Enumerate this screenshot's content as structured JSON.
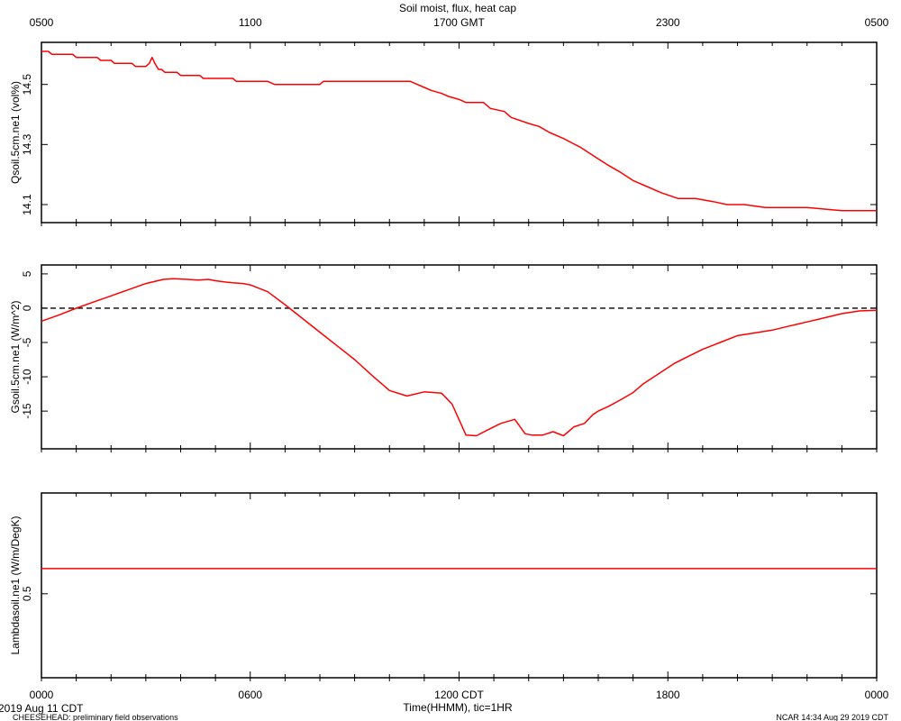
{
  "figure": {
    "title": "Soil moist, flux, heat cap",
    "date_label": "2019 Aug 11 CDT",
    "footer_left": "CHEESEHEAD: preliminary field observations",
    "footer_right": "NCAR 14:34 Aug 29 2019 CDT",
    "bottom_xlabel": "Time(HHMM), tic=1HR",
    "top_ticks": [
      "0500",
      "1100",
      "1700 GMT",
      "2300",
      "0500"
    ],
    "bottom_ticks": [
      "0000",
      "0600",
      "1200 CDT",
      "1800",
      "0000"
    ]
  },
  "colors": {
    "series": "#ff0000",
    "axis": "#000000",
    "zero_line": "#000000"
  },
  "chart_data": [
    {
      "type": "line",
      "ylabel": "Qsoil.5cm.ne1 (vol%)",
      "ylim": [
        14.04,
        14.64
      ],
      "yticks": [
        14.1,
        14.3,
        14.5
      ],
      "ytick_labels": [
        "14.1",
        "14.3",
        "14.5"
      ],
      "xlim": [
        0,
        24
      ],
      "series": [
        {
          "x": [
            0,
            0.2,
            0.3,
            0.9,
            1.0,
            1.6,
            1.7,
            2.0,
            2.1,
            2.6,
            2.7,
            3.0,
            3.1,
            3.18,
            3.26,
            3.36,
            3.45,
            3.55,
            3.9,
            4.0,
            4.55,
            4.65,
            5.5,
            5.6,
            6.5,
            6.7,
            6.8,
            8.0,
            8.1,
            10.6,
            10.8,
            11.0,
            11.2,
            11.5,
            11.7,
            12.0,
            12.2,
            12.7,
            12.9,
            13.3,
            13.5,
            14.0,
            14.3,
            14.6,
            15.0,
            15.5,
            15.9,
            16.3,
            16.6,
            17.0,
            17.4,
            17.8,
            18.3,
            18.8,
            19.3,
            19.7,
            20.2,
            20.8,
            21.5,
            22.0,
            23.0,
            23.3,
            24.0
          ],
          "y": [
            14.61,
            14.61,
            14.6,
            14.6,
            14.59,
            14.59,
            14.58,
            14.58,
            14.57,
            14.57,
            14.56,
            14.56,
            14.57,
            14.59,
            14.57,
            14.55,
            14.55,
            14.54,
            14.54,
            14.53,
            14.53,
            14.52,
            14.52,
            14.51,
            14.51,
            14.5,
            14.5,
            14.5,
            14.51,
            14.51,
            14.5,
            14.49,
            14.48,
            14.47,
            14.46,
            14.45,
            14.44,
            14.44,
            14.42,
            14.41,
            14.39,
            14.37,
            14.36,
            14.34,
            14.32,
            14.29,
            14.26,
            14.23,
            14.21,
            14.18,
            14.16,
            14.14,
            14.12,
            14.12,
            14.11,
            14.1,
            14.1,
            14.09,
            14.09,
            14.09,
            14.08,
            14.08,
            14.08
          ]
        }
      ]
    },
    {
      "type": "line",
      "ylabel": "Gsoil.5cm.ne1 (W/m^2)",
      "ylim": [
        -20.5,
        6.3
      ],
      "yticks": [
        -15,
        -10,
        -5,
        0,
        5
      ],
      "ytick_labels": [
        "-15",
        "-10",
        "-5",
        "0",
        "5"
      ],
      "xlim": [
        0,
        24
      ],
      "zero_line": 0,
      "series": [
        {
          "x": [
            0,
            0.5,
            1.0,
            1.5,
            2.0,
            2.5,
            3.0,
            3.5,
            3.8,
            4.2,
            4.5,
            4.8,
            5.0,
            5.3,
            5.5,
            5.8,
            6.0,
            6.5,
            7.0,
            7.5,
            8.0,
            8.5,
            9.0,
            9.5,
            10.0,
            10.5,
            11.0,
            11.5,
            11.8,
            12.2,
            12.5,
            12.8,
            13.2,
            13.6,
            13.9,
            14.1,
            14.4,
            14.7,
            15.0,
            15.3,
            15.6,
            15.85,
            16.0,
            16.3,
            16.7,
            17.0,
            17.3,
            17.6,
            17.9,
            18.2,
            18.6,
            19.0,
            19.5,
            20.0,
            20.5,
            21.0,
            21.5,
            22.0,
            22.5,
            23.0,
            23.5,
            24.0
          ],
          "y": [
            -1.9,
            -1.0,
            0.0,
            0.9,
            1.8,
            2.7,
            3.6,
            4.2,
            4.3,
            4.2,
            4.1,
            4.2,
            4.0,
            3.8,
            3.7,
            3.6,
            3.4,
            2.4,
            0.5,
            -1.5,
            -3.5,
            -5.5,
            -7.5,
            -9.8,
            -12.0,
            -12.8,
            -12.2,
            -12.4,
            -14.0,
            -18.5,
            -18.6,
            -17.8,
            -16.8,
            -16.2,
            -18.3,
            -18.5,
            -18.5,
            -18.0,
            -18.6,
            -17.3,
            -16.8,
            -15.5,
            -15.0,
            -14.3,
            -13.2,
            -12.3,
            -11.0,
            -10.0,
            -9.0,
            -8.0,
            -7.0,
            -6.0,
            -5.0,
            -4.0,
            -3.6,
            -3.2,
            -2.6,
            -2.0,
            -1.4,
            -0.8,
            -0.4,
            -0.3
          ]
        }
      ]
    },
    {
      "type": "line",
      "ylabel": "Lambdasoil.ne1 (W/m/DegK)",
      "ylim": [
        0.4,
        0.62
      ],
      "yticks": [
        0.5
      ],
      "ytick_labels": [
        "0.5"
      ],
      "xlim": [
        0,
        24
      ],
      "series": [
        {
          "x": [
            0,
            24
          ],
          "y": [
            0.53,
            0.53
          ]
        }
      ]
    }
  ]
}
